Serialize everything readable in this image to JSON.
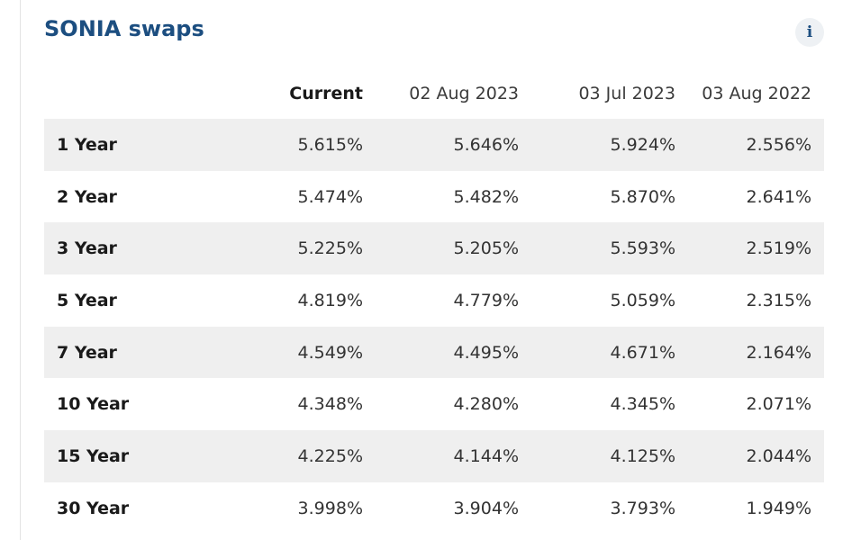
{
  "widget": {
    "title": "SONIA swaps",
    "info_label": "i"
  },
  "table": {
    "columns": [
      "Current",
      "02 Aug 2023",
      "03 Jul 2023",
      "03 Aug 2022"
    ],
    "rows": [
      {
        "tenor": "1 Year",
        "values": [
          "5.615%",
          "5.646%",
          "5.924%",
          "2.556%"
        ]
      },
      {
        "tenor": "2 Year",
        "values": [
          "5.474%",
          "5.482%",
          "5.870%",
          "2.641%"
        ]
      },
      {
        "tenor": "3 Year",
        "values": [
          "5.225%",
          "5.205%",
          "5.593%",
          "2.519%"
        ]
      },
      {
        "tenor": "5 Year",
        "values": [
          "4.819%",
          "4.779%",
          "5.059%",
          "2.315%"
        ]
      },
      {
        "tenor": "7 Year",
        "values": [
          "4.549%",
          "4.495%",
          "4.671%",
          "2.164%"
        ]
      },
      {
        "tenor": "10 Year",
        "values": [
          "4.348%",
          "4.280%",
          "4.345%",
          "2.071%"
        ]
      },
      {
        "tenor": "15 Year",
        "values": [
          "4.225%",
          "4.144%",
          "4.125%",
          "2.044%"
        ]
      },
      {
        "tenor": "30 Year",
        "values": [
          "3.998%",
          "3.904%",
          "3.793%",
          "1.949%"
        ]
      }
    ]
  },
  "colors": {
    "title": "#1c4e80",
    "row_shade": "#efefef",
    "info_bg": "#eef1f4"
  }
}
